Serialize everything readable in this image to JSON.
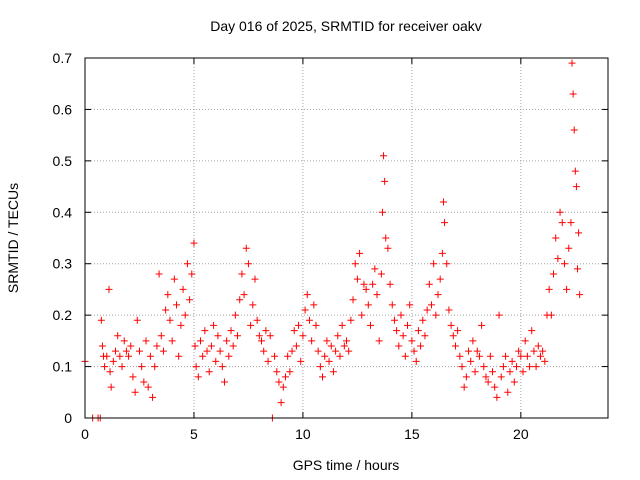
{
  "chart_data": {
    "type": "scatter",
    "title": "Day 016 of 2025, SRMTID for receiver oakv",
    "xlabel": "GPS time / hours",
    "ylabel": "SRMTID / TECUs",
    "xlim": [
      0,
      24
    ],
    "ylim": [
      0,
      0.7
    ],
    "x_ticks": [
      0,
      5,
      10,
      15,
      20
    ],
    "x_tick_labels": [
      "0",
      "5",
      "10",
      "15",
      "20"
    ],
    "y_ticks": [
      0,
      0.1,
      0.2,
      0.3,
      0.4,
      0.5,
      0.6,
      0.7
    ],
    "y_tick_labels": [
      "0",
      "0.1",
      "0.2",
      "0.3",
      "0.4",
      "0.5",
      "0.6",
      "0.7"
    ],
    "grid": true,
    "marker": "+",
    "colors": {
      "series": "#ff0000",
      "grid": "#a0a0a0",
      "axis": "#000000"
    },
    "series": [
      {
        "name": "SRMTID",
        "points": [
          [
            0.0,
            0.11
          ],
          [
            0.35,
            0.0
          ],
          [
            0.6,
            0.0
          ],
          [
            0.7,
            0.0
          ],
          [
            0.75,
            0.19
          ],
          [
            0.8,
            0.14
          ],
          [
            0.85,
            0.12
          ],
          [
            0.9,
            0.1
          ],
          [
            1.0,
            0.12
          ],
          [
            1.1,
            0.25
          ],
          [
            1.15,
            0.09
          ],
          [
            1.2,
            0.06
          ],
          [
            1.3,
            0.11
          ],
          [
            1.4,
            0.13
          ],
          [
            1.5,
            0.16
          ],
          [
            1.6,
            0.12
          ],
          [
            1.7,
            0.1
          ],
          [
            1.8,
            0.15
          ],
          [
            1.9,
            0.13
          ],
          [
            2.0,
            0.12
          ],
          [
            2.1,
            0.14
          ],
          [
            2.2,
            0.08
          ],
          [
            2.3,
            0.05
          ],
          [
            2.4,
            0.19
          ],
          [
            2.5,
            0.13
          ],
          [
            2.6,
            0.1
          ],
          [
            2.7,
            0.07
          ],
          [
            2.8,
            0.15
          ],
          [
            2.9,
            0.06
          ],
          [
            3.0,
            0.12
          ],
          [
            3.1,
            0.04
          ],
          [
            3.2,
            0.1
          ],
          [
            3.3,
            0.14
          ],
          [
            3.4,
            0.28
          ],
          [
            3.5,
            0.16
          ],
          [
            3.6,
            0.13
          ],
          [
            3.7,
            0.21
          ],
          [
            3.8,
            0.24
          ],
          [
            3.9,
            0.19
          ],
          [
            4.0,
            0.15
          ],
          [
            4.1,
            0.27
          ],
          [
            4.2,
            0.22
          ],
          [
            4.3,
            0.12
          ],
          [
            4.4,
            0.18
          ],
          [
            4.5,
            0.25
          ],
          [
            4.6,
            0.2
          ],
          [
            4.7,
            0.3
          ],
          [
            4.8,
            0.23
          ],
          [
            4.9,
            0.28
          ],
          [
            5.0,
            0.34
          ],
          [
            5.05,
            0.14
          ],
          [
            5.1,
            0.1
          ],
          [
            5.2,
            0.08
          ],
          [
            5.3,
            0.15
          ],
          [
            5.4,
            0.12
          ],
          [
            5.5,
            0.17
          ],
          [
            5.6,
            0.13
          ],
          [
            5.7,
            0.09
          ],
          [
            5.8,
            0.14
          ],
          [
            5.9,
            0.18
          ],
          [
            6.0,
            0.11
          ],
          [
            6.1,
            0.16
          ],
          [
            6.2,
            0.13
          ],
          [
            6.3,
            0.1
          ],
          [
            6.4,
            0.07
          ],
          [
            6.5,
            0.15
          ],
          [
            6.6,
            0.12
          ],
          [
            6.7,
            0.17
          ],
          [
            6.8,
            0.14
          ],
          [
            6.9,
            0.2
          ],
          [
            7.0,
            0.16
          ],
          [
            7.1,
            0.23
          ],
          [
            7.2,
            0.28
          ],
          [
            7.3,
            0.24
          ],
          [
            7.4,
            0.33
          ],
          [
            7.5,
            0.3
          ],
          [
            7.6,
            0.18
          ],
          [
            7.7,
            0.22
          ],
          [
            7.8,
            0.27
          ],
          [
            7.9,
            0.19
          ],
          [
            8.0,
            0.16
          ],
          [
            8.1,
            0.15
          ],
          [
            8.2,
            0.13
          ],
          [
            8.3,
            0.17
          ],
          [
            8.4,
            0.11
          ],
          [
            8.5,
            0.16
          ],
          [
            8.6,
            0.0
          ],
          [
            8.7,
            0.12
          ],
          [
            8.8,
            0.09
          ],
          [
            8.9,
            0.07
          ],
          [
            9.0,
            0.03
          ],
          [
            9.1,
            0.06
          ],
          [
            9.2,
            0.08
          ],
          [
            9.3,
            0.12
          ],
          [
            9.4,
            0.09
          ],
          [
            9.5,
            0.13
          ],
          [
            9.6,
            0.17
          ],
          [
            9.7,
            0.14
          ],
          [
            9.8,
            0.18
          ],
          [
            9.9,
            0.11
          ],
          [
            10.0,
            0.16
          ],
          [
            10.1,
            0.21
          ],
          [
            10.2,
            0.24
          ],
          [
            10.3,
            0.19
          ],
          [
            10.4,
            0.15
          ],
          [
            10.5,
            0.22
          ],
          [
            10.6,
            0.18
          ],
          [
            10.7,
            0.13
          ],
          [
            10.8,
            0.1
          ],
          [
            10.9,
            0.08
          ],
          [
            11.0,
            0.12
          ],
          [
            11.1,
            0.15
          ],
          [
            11.2,
            0.11
          ],
          [
            11.3,
            0.14
          ],
          [
            11.4,
            0.09
          ],
          [
            11.5,
            0.13
          ],
          [
            11.6,
            0.16
          ],
          [
            11.7,
            0.12
          ],
          [
            11.8,
            0.18
          ],
          [
            11.9,
            0.14
          ],
          [
            12.0,
            0.15
          ],
          [
            12.1,
            0.13
          ],
          [
            12.2,
            0.19
          ],
          [
            12.3,
            0.23
          ],
          [
            12.4,
            0.3
          ],
          [
            12.5,
            0.27
          ],
          [
            12.6,
            0.32
          ],
          [
            12.7,
            0.2
          ],
          [
            12.8,
            0.26
          ],
          [
            12.9,
            0.25
          ],
          [
            13.0,
            0.22
          ],
          [
            13.1,
            0.18
          ],
          [
            13.2,
            0.26
          ],
          [
            13.3,
            0.29
          ],
          [
            13.4,
            0.24
          ],
          [
            13.5,
            0.15
          ],
          [
            13.6,
            0.28
          ],
          [
            13.65,
            0.4
          ],
          [
            13.7,
            0.51
          ],
          [
            13.75,
            0.46
          ],
          [
            13.8,
            0.35
          ],
          [
            13.9,
            0.33
          ],
          [
            14.0,
            0.26
          ],
          [
            14.1,
            0.22
          ],
          [
            14.2,
            0.19
          ],
          [
            14.3,
            0.17
          ],
          [
            14.4,
            0.14
          ],
          [
            14.5,
            0.2
          ],
          [
            14.6,
            0.16
          ],
          [
            14.7,
            0.12
          ],
          [
            14.8,
            0.18
          ],
          [
            14.9,
            0.22
          ],
          [
            15.0,
            0.15
          ],
          [
            15.1,
            0.13
          ],
          [
            15.2,
            0.11
          ],
          [
            15.3,
            0.17
          ],
          [
            15.4,
            0.14
          ],
          [
            15.5,
            0.19
          ],
          [
            15.6,
            0.16
          ],
          [
            15.7,
            0.21
          ],
          [
            15.8,
            0.26
          ],
          [
            15.9,
            0.22
          ],
          [
            16.0,
            0.3
          ],
          [
            16.1,
            0.2
          ],
          [
            16.2,
            0.24
          ],
          [
            16.3,
            0.27
          ],
          [
            16.4,
            0.32
          ],
          [
            16.45,
            0.42
          ],
          [
            16.5,
            0.38
          ],
          [
            16.6,
            0.3
          ],
          [
            16.7,
            0.21
          ],
          [
            16.8,
            0.18
          ],
          [
            16.9,
            0.16
          ],
          [
            17.0,
            0.14
          ],
          [
            17.1,
            0.17
          ],
          [
            17.2,
            0.12
          ],
          [
            17.3,
            0.1
          ],
          [
            17.4,
            0.06
          ],
          [
            17.5,
            0.08
          ],
          [
            17.6,
            0.13
          ],
          [
            17.7,
            0.11
          ],
          [
            17.8,
            0.15
          ],
          [
            17.9,
            0.09
          ],
          [
            18.0,
            0.13
          ],
          [
            18.1,
            0.12
          ],
          [
            18.2,
            0.18
          ],
          [
            18.3,
            0.1
          ],
          [
            18.4,
            0.08
          ],
          [
            18.5,
            0.07
          ],
          [
            18.6,
            0.12
          ],
          [
            18.7,
            0.09
          ],
          [
            18.8,
            0.06
          ],
          [
            18.9,
            0.04
          ],
          [
            19.0,
            0.2
          ],
          [
            19.1,
            0.08
          ],
          [
            19.2,
            0.1
          ],
          [
            19.3,
            0.12
          ],
          [
            19.4,
            0.05
          ],
          [
            19.5,
            0.09
          ],
          [
            19.6,
            0.11
          ],
          [
            19.7,
            0.07
          ],
          [
            19.8,
            0.1
          ],
          [
            19.9,
            0.13
          ],
          [
            20.0,
            0.12
          ],
          [
            20.1,
            0.09
          ],
          [
            20.2,
            0.15
          ],
          [
            20.3,
            0.12
          ],
          [
            20.4,
            0.1
          ],
          [
            20.5,
            0.17
          ],
          [
            20.6,
            0.13
          ],
          [
            20.7,
            0.1
          ],
          [
            20.8,
            0.14
          ],
          [
            20.9,
            0.12
          ],
          [
            21.0,
            0.13
          ],
          [
            21.1,
            0.11
          ],
          [
            21.2,
            0.2
          ],
          [
            21.3,
            0.25
          ],
          [
            21.4,
            0.2
          ],
          [
            21.5,
            0.28
          ],
          [
            21.6,
            0.35
          ],
          [
            21.7,
            0.31
          ],
          [
            21.8,
            0.4
          ],
          [
            21.9,
            0.38
          ],
          [
            22.0,
            0.3
          ],
          [
            22.1,
            0.25
          ],
          [
            22.2,
            0.33
          ],
          [
            22.3,
            0.38
          ],
          [
            22.35,
            0.69
          ],
          [
            22.4,
            0.63
          ],
          [
            22.45,
            0.56
          ],
          [
            22.5,
            0.48
          ],
          [
            22.55,
            0.45
          ],
          [
            22.6,
            0.29
          ],
          [
            22.65,
            0.36
          ],
          [
            22.7,
            0.24
          ]
        ]
      }
    ]
  }
}
